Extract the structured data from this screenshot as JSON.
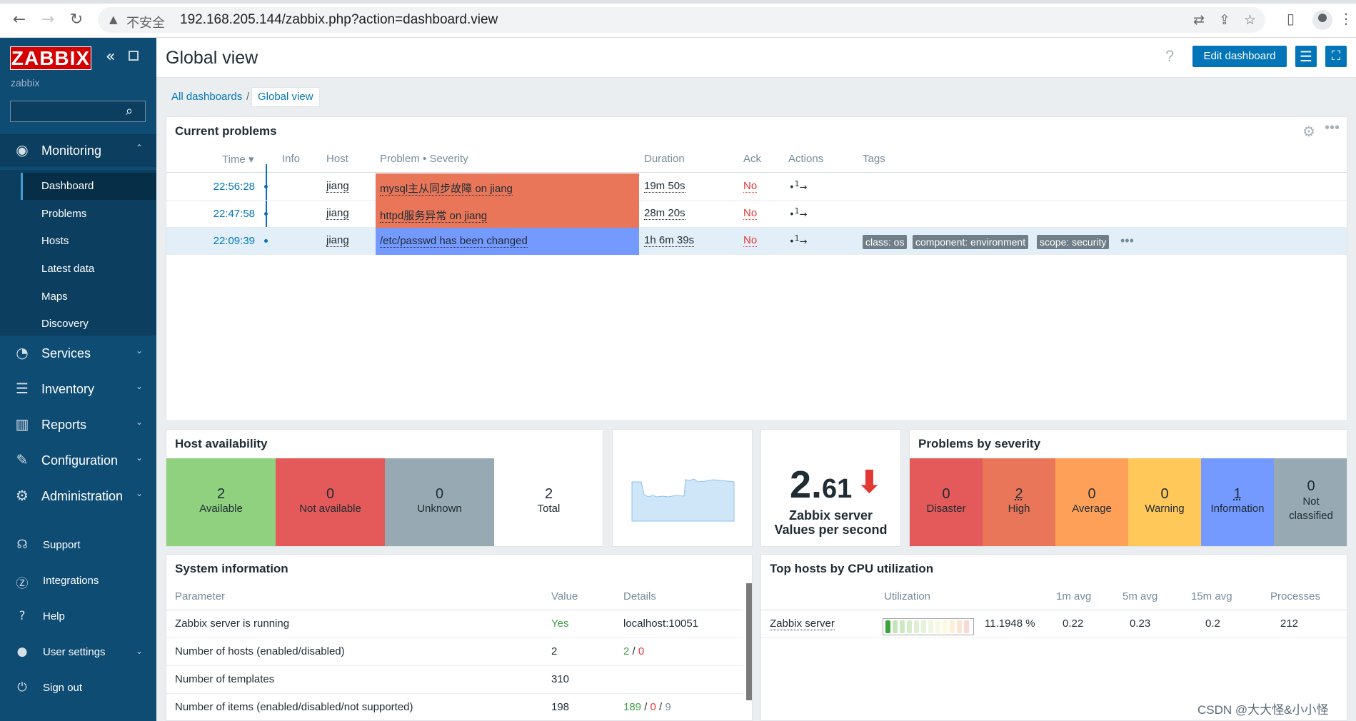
{
  "browser": {
    "insecure_label": "不安全",
    "url": "192.168.205.144/zabbix.php?action=dashboard.view"
  },
  "sidebar": {
    "logo": "ZABBIX",
    "server_name": "zabbix",
    "search_placeholder": "",
    "menu": [
      {
        "label": "Monitoring",
        "icon": "eye-icon",
        "expanded": true
      },
      {
        "label": "Services",
        "icon": "services-icon"
      },
      {
        "label": "Inventory",
        "icon": "inventory-list-icon"
      },
      {
        "label": "Reports",
        "icon": "reports-chart-icon"
      },
      {
        "label": "Configuration",
        "icon": "wrench-icon"
      },
      {
        "label": "Administration",
        "icon": "gear-icon"
      }
    ],
    "submenu": [
      "Dashboard",
      "Problems",
      "Hosts",
      "Latest data",
      "Maps",
      "Discovery"
    ],
    "bottom": [
      {
        "label": "Support",
        "icon": "headset-icon"
      },
      {
        "label": "Integrations",
        "icon": "integrations-icon"
      },
      {
        "label": "Help",
        "icon": "help-icon"
      },
      {
        "label": "User settings",
        "icon": "user-icon"
      },
      {
        "label": "Sign out",
        "icon": "power-icon"
      }
    ]
  },
  "header": {
    "title": "Global view",
    "edit_button": "Edit dashboard"
  },
  "breadcrumb": {
    "all": "All dashboards",
    "separator": "/",
    "current": "Global view"
  },
  "current_problems": {
    "title": "Current problems",
    "columns": [
      "Time ▾",
      "Info",
      "Host",
      "Problem • Severity",
      "Duration",
      "Ack",
      "Actions",
      "Tags"
    ],
    "rows": [
      {
        "time": "22:56:28",
        "host": "jiang",
        "problem": "mysql主从同步故障 on jiang",
        "severity_color": "#e97659",
        "duration": "19m 50s",
        "ack": "No",
        "actions": "1"
      },
      {
        "time": "22:47:58",
        "host": "jiang",
        "problem": "httpd服务异常 on jiang",
        "severity_color": "#e97659",
        "duration": "28m 20s",
        "ack": "No",
        "actions": "1"
      },
      {
        "time": "22:09:39",
        "host": "jiang",
        "problem": "/etc/passwd has been changed",
        "severity_color": "#7499ff",
        "duration": "1h 6m 39s",
        "ack": "No",
        "actions": "1",
        "tags": [
          "class: os",
          "component: environment",
          "scope: security"
        ]
      }
    ]
  },
  "host_availability": {
    "title": "Host availability",
    "cells": [
      {
        "value": "2",
        "label": "Available",
        "color": "#8fd17f"
      },
      {
        "value": "0",
        "label": "Not available",
        "color": "#e45959"
      },
      {
        "value": "0",
        "label": "Unknown",
        "color": "#97aab3"
      },
      {
        "value": "2",
        "label": "Total",
        "color": "#ffffff"
      }
    ]
  },
  "vps": {
    "value_int": "2.",
    "value_frac": "61",
    "label1": "Zabbix server",
    "label2": "Values per second",
    "arrow": "⬇"
  },
  "problems_by_severity": {
    "title": "Problems by severity",
    "cells": [
      {
        "value": "0",
        "label": "Disaster",
        "color": "#e45959"
      },
      {
        "value": "2",
        "label": "High",
        "color": "#e97659"
      },
      {
        "value": "0",
        "label": "Average",
        "color": "#ffa059"
      },
      {
        "value": "0",
        "label": "Warning",
        "color": "#ffc859"
      },
      {
        "value": "1",
        "label": "Information",
        "color": "#7499ff"
      },
      {
        "value": "0",
        "label": "Not classified",
        "color": "#97aab3"
      }
    ]
  },
  "system_info": {
    "title": "System information",
    "columns": [
      "Parameter",
      "Value",
      "Details"
    ],
    "rows": [
      {
        "param": "Zabbix server is running",
        "value": "Yes",
        "details": "localhost:10051"
      },
      {
        "param": "Number of hosts (enabled/disabled)",
        "value": "2",
        "d1": "2",
        "d2": "0"
      },
      {
        "param": "Number of templates",
        "value": "310"
      },
      {
        "param": "Number of items (enabled/disabled/not supported)",
        "value": "198",
        "d1": "189",
        "d2": "0",
        "d3": "9"
      }
    ]
  },
  "top_hosts": {
    "title": "Top hosts by CPU utilization",
    "columns": [
      "Utilization",
      "1m avg",
      "5m avg",
      "15m avg",
      "Processes"
    ],
    "rows": [
      {
        "host": "Zabbix server",
        "util": "11.1948 %",
        "util_fraction": 0.112,
        "avg1": "0.22",
        "avg5": "0.23",
        "avg15": "0.2",
        "processes": "212"
      }
    ]
  },
  "watermark": "CSDN @大大怪&小小怪"
}
